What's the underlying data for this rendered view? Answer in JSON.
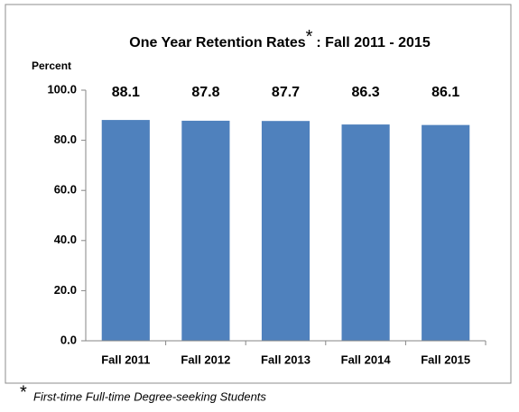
{
  "chart_data": {
    "type": "bar",
    "title": "One Year Retention Rates",
    "title_mark": "*",
    "title_suffix": ": Fall 2011 - 2015",
    "y_label": "Percent",
    "categories": [
      "Fall 2011",
      "Fall 2012",
      "Fall 2013",
      "Fall 2014",
      "Fall 2015"
    ],
    "values": [
      88.1,
      87.8,
      87.7,
      86.3,
      86.1
    ],
    "color": "#4f81bd",
    "ylim": [
      0,
      100
    ],
    "yticks": [
      {
        "value": 0,
        "label": "0.0"
      },
      {
        "value": 20,
        "label": "20.0"
      },
      {
        "value": 40,
        "label": "40.0"
      },
      {
        "value": 60,
        "label": "60.0"
      },
      {
        "value": 80,
        "label": "80.0"
      },
      {
        "value": 100,
        "label": "100.0"
      }
    ],
    "grid": false,
    "footnote_mark": "*",
    "footnote": "First-time Full-time Degree-seeking Students"
  }
}
